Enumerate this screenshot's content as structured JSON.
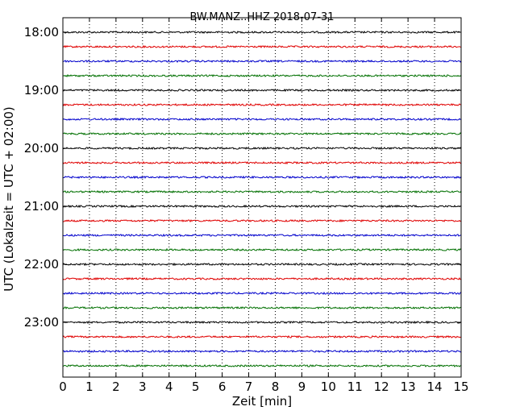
{
  "chart_data": {
    "type": "line",
    "title": "BW.MANZ..HHZ 2018-07-31",
    "xlabel": "Zeit  [min]",
    "ylabel": "UTC (Lokalzeit = UTC + 02:00)",
    "xlim": [
      0,
      15
    ],
    "x_ticks": [
      "0",
      "1",
      "2",
      "3",
      "4",
      "5",
      "6",
      "7",
      "8",
      "9",
      "10",
      "11",
      "12",
      "13",
      "14",
      "15"
    ],
    "y_ticks": [
      {
        "label": "18:00",
        "time_min": 0
      },
      {
        "label": "19:00",
        "time_min": 60
      },
      {
        "label": "20:00",
        "time_min": 120
      },
      {
        "label": "21:00",
        "time_min": 180
      },
      {
        "label": "22:00",
        "time_min": 240
      },
      {
        "label": "23:00",
        "time_min": 300
      }
    ],
    "grid": "vertical dotted at each minute",
    "trace_interval_min": 15,
    "trace_colors": [
      "#000000",
      "#e00000",
      "#0000cc",
      "#007000"
    ],
    "series": [
      {
        "start": "18:00",
        "color": "#000000"
      },
      {
        "start": "18:15",
        "color": "#e00000"
      },
      {
        "start": "18:30",
        "color": "#0000cc"
      },
      {
        "start": "18:45",
        "color": "#007000"
      },
      {
        "start": "19:00",
        "color": "#000000"
      },
      {
        "start": "19:15",
        "color": "#e00000"
      },
      {
        "start": "19:30",
        "color": "#0000cc"
      },
      {
        "start": "19:45",
        "color": "#007000"
      },
      {
        "start": "20:00",
        "color": "#000000"
      },
      {
        "start": "20:15",
        "color": "#e00000"
      },
      {
        "start": "20:30",
        "color": "#0000cc"
      },
      {
        "start": "20:45",
        "color": "#007000"
      },
      {
        "start": "21:00",
        "color": "#000000"
      },
      {
        "start": "21:15",
        "color": "#e00000"
      },
      {
        "start": "21:30",
        "color": "#0000cc"
      },
      {
        "start": "21:45",
        "color": "#007000"
      },
      {
        "start": "22:00",
        "color": "#000000"
      },
      {
        "start": "22:15",
        "color": "#e00000"
      },
      {
        "start": "22:30",
        "color": "#0000cc"
      },
      {
        "start": "22:45",
        "color": "#007000"
      },
      {
        "start": "23:00",
        "color": "#000000"
      },
      {
        "start": "23:15",
        "color": "#e00000"
      },
      {
        "start": "23:30",
        "color": "#0000cc"
      },
      {
        "start": "23:45",
        "color": "#007000"
      }
    ]
  }
}
